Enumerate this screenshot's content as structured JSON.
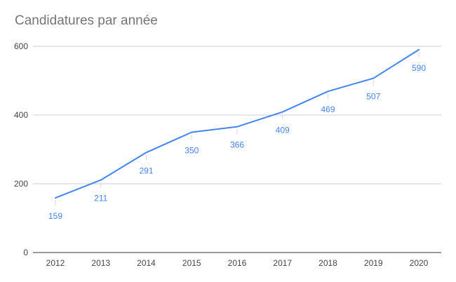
{
  "chart_data": {
    "type": "line",
    "title": "Candidatures par année",
    "xlabel": "",
    "ylabel": "",
    "categories": [
      "2012",
      "2013",
      "2014",
      "2015",
      "2016",
      "2017",
      "2018",
      "2019",
      "2020"
    ],
    "series": [
      {
        "values": [
          159,
          211,
          291,
          350,
          366,
          409,
          469,
          507,
          590
        ]
      }
    ],
    "ylim": [
      0,
      600
    ],
    "yticks": [
      0,
      200,
      400,
      600
    ],
    "grid": true,
    "legend": "none",
    "data_labels": true,
    "colors": {
      "line": "#4285f4",
      "label": "#4285f4",
      "grid": "#cccccc",
      "axis": "#333333",
      "title": "#757575",
      "tick": "#444444"
    }
  }
}
